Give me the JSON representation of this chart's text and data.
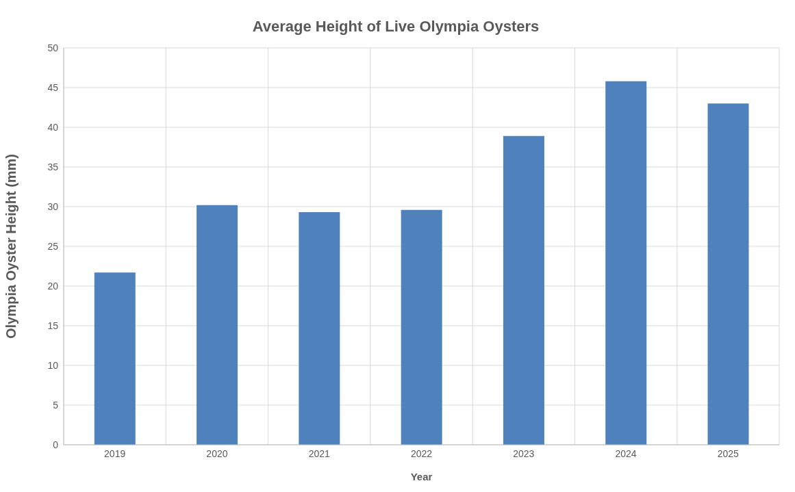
{
  "chart_data": {
    "type": "bar",
    "title": "Average Height of Live Olympia Oysters",
    "xlabel": "Year",
    "ylabel": "Olympia Oyster Height (mm)",
    "categories": [
      "2019",
      "2020",
      "2021",
      "2022",
      "2023",
      "2024",
      "2025"
    ],
    "values": [
      21.7,
      30.2,
      29.3,
      29.6,
      38.9,
      45.8,
      43.0
    ],
    "color": "#4f81bd",
    "ylim": [
      0,
      50
    ],
    "yticks": [
      0,
      5,
      10,
      15,
      20,
      25,
      30,
      35,
      40,
      45,
      50
    ],
    "grid": true
  }
}
